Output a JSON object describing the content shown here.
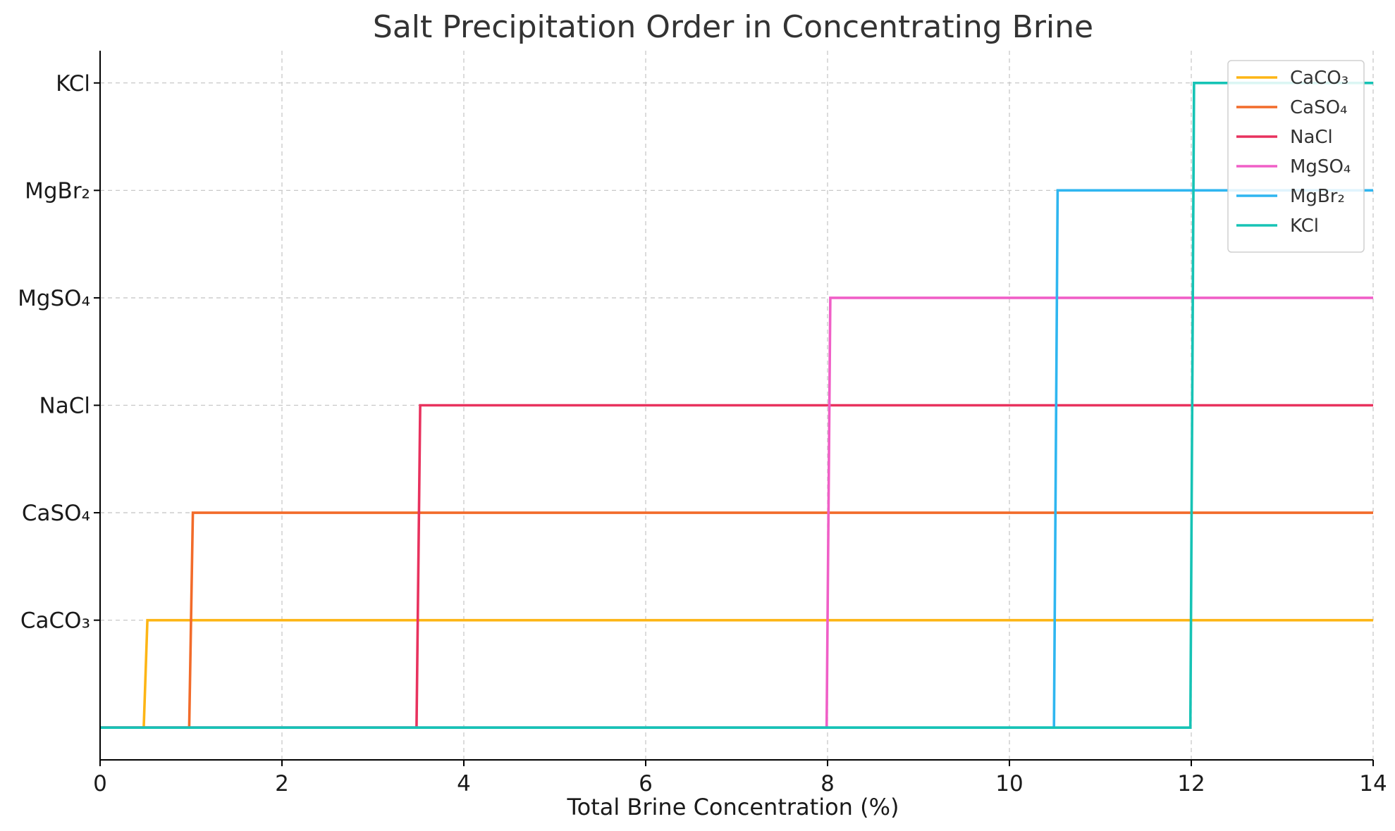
{
  "chart_data": {
    "type": "line",
    "title": "Salt Precipitation Order in Concentrating Brine",
    "xlabel": "Total Brine Concentration (%)",
    "ylabel": "",
    "xlim": [
      0,
      14
    ],
    "ylim": [
      -0.3,
      6.3
    ],
    "x_ticks": [
      0,
      2,
      4,
      6,
      8,
      10,
      12,
      14
    ],
    "y_tick_labels": [
      "CaCO₃",
      "CaSO₄",
      "NaCl",
      "MgSO₄",
      "MgBr₂",
      "KCl"
    ],
    "y_tick_values": [
      1,
      2,
      3,
      4,
      5,
      6
    ],
    "grid": true,
    "grid_style": "dashed",
    "legend_position": "top-right",
    "series": [
      {
        "name": "CaCO₃",
        "color": "#FDB515",
        "onset": 0.5,
        "level": 1,
        "points": [
          [
            0,
            0
          ],
          [
            0.48,
            0
          ],
          [
            0.52,
            1
          ],
          [
            14,
            1
          ]
        ]
      },
      {
        "name": "CaSO₄",
        "color": "#F26B2A",
        "onset": 1.0,
        "level": 2,
        "points": [
          [
            0,
            0
          ],
          [
            0.98,
            0
          ],
          [
            1.02,
            2
          ],
          [
            14,
            2
          ]
        ]
      },
      {
        "name": "NaCl",
        "color": "#E8325E",
        "onset": 3.5,
        "level": 3,
        "points": [
          [
            0,
            0
          ],
          [
            3.48,
            0
          ],
          [
            3.52,
            3
          ],
          [
            14,
            3
          ]
        ]
      },
      {
        "name": "MgSO₄",
        "color": "#F05FC7",
        "onset": 8.0,
        "level": 4,
        "points": [
          [
            0,
            0
          ],
          [
            7.99,
            0
          ],
          [
            8.03,
            4
          ],
          [
            14,
            4
          ]
        ]
      },
      {
        "name": "MgBr₂",
        "color": "#2FB6F0",
        "onset": 10.5,
        "level": 5,
        "points": [
          [
            0,
            0
          ],
          [
            10.49,
            0
          ],
          [
            10.53,
            5
          ],
          [
            14,
            5
          ]
        ]
      },
      {
        "name": "KCl",
        "color": "#16C3B5",
        "onset": 12.0,
        "level": 6,
        "points": [
          [
            0,
            0
          ],
          [
            11.99,
            0
          ],
          [
            12.03,
            6
          ],
          [
            14,
            6
          ]
        ]
      }
    ]
  }
}
